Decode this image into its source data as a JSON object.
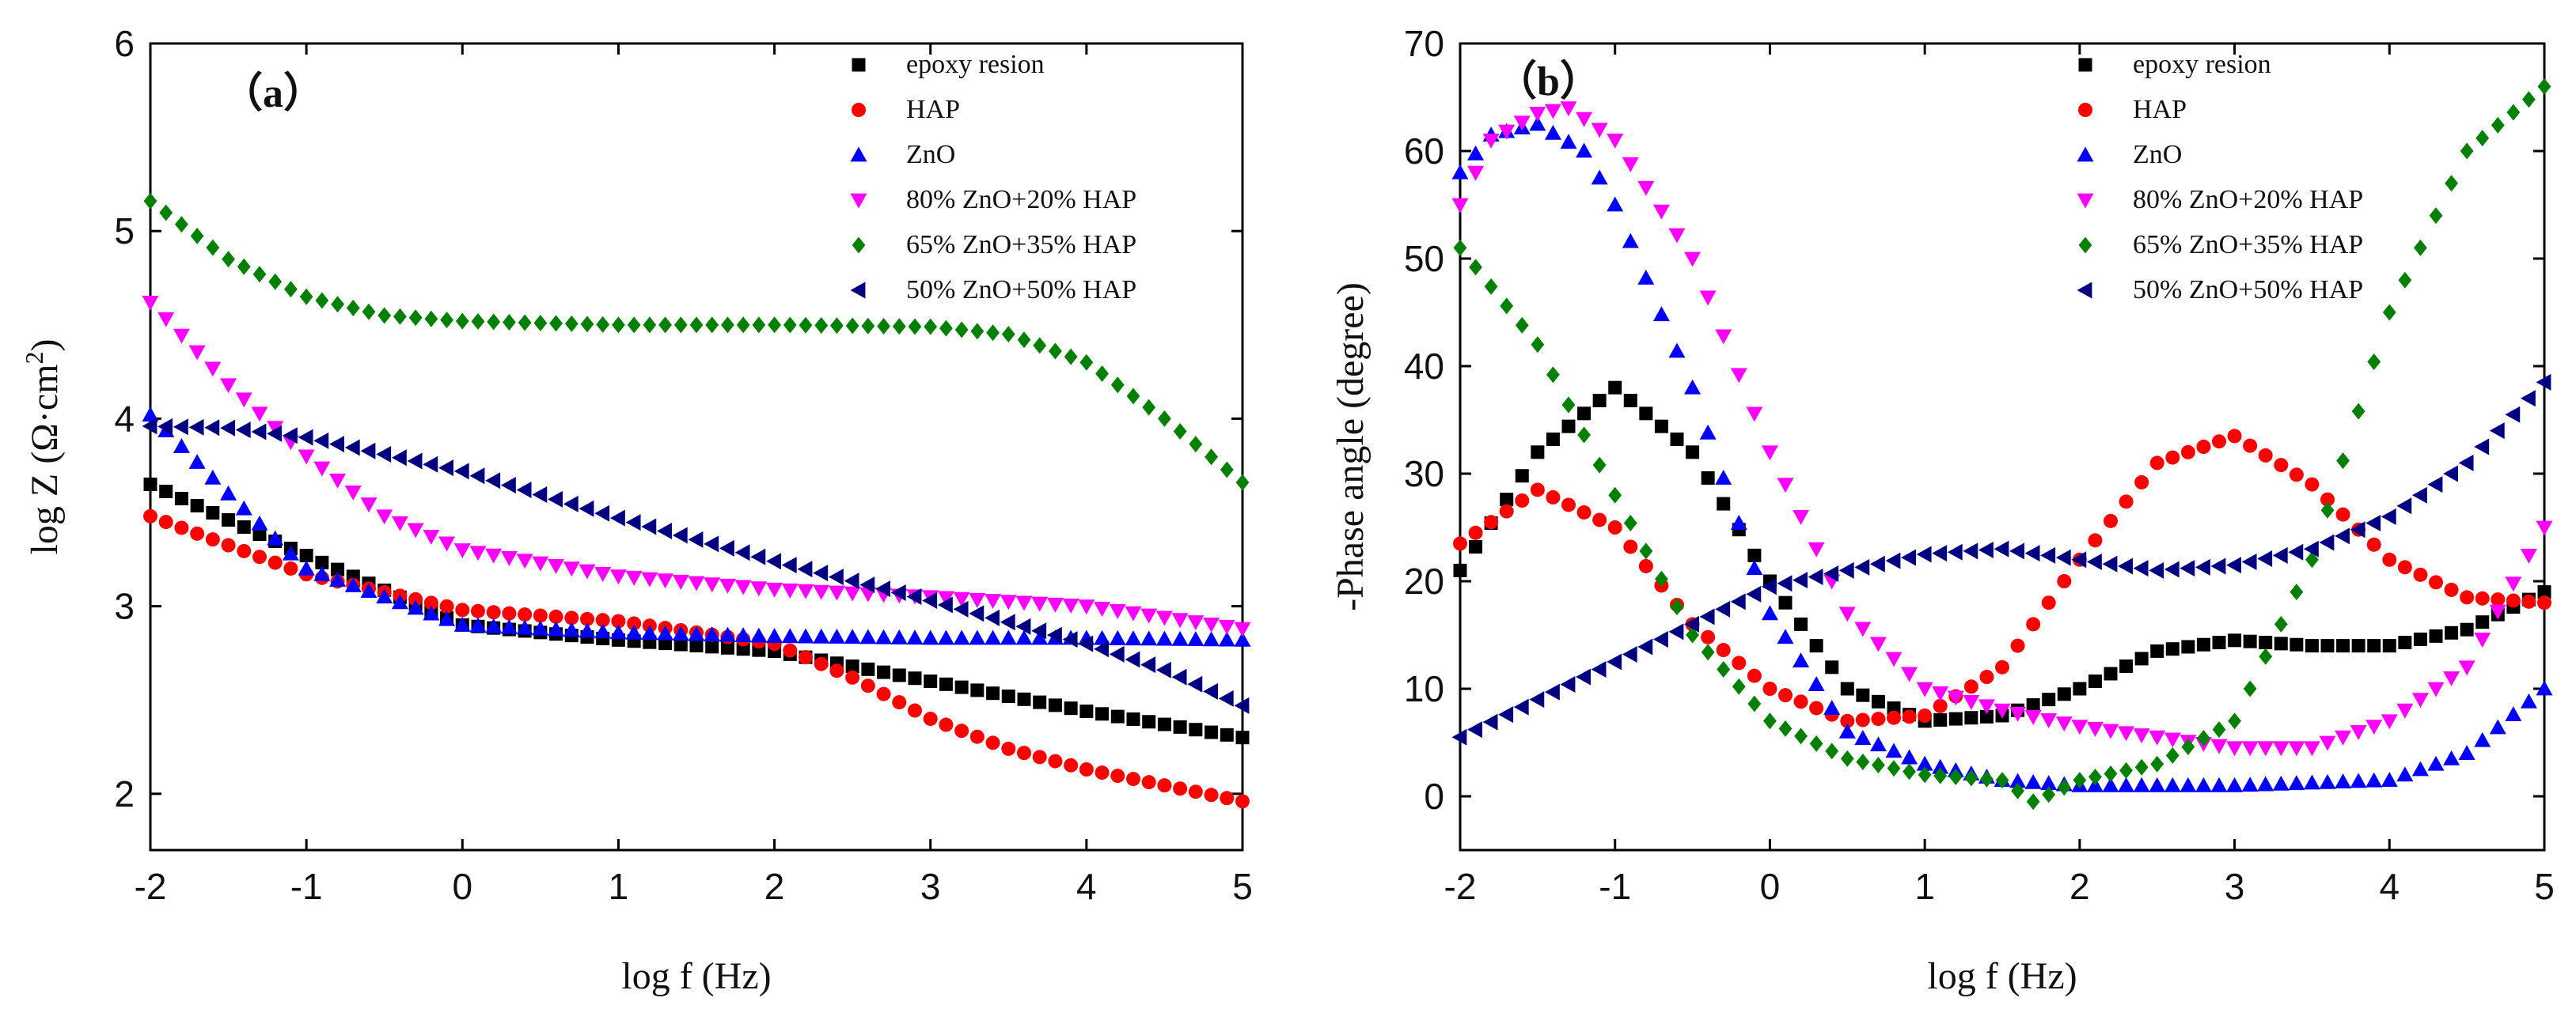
{
  "figure": "eis-bode-plots",
  "colors": {
    "epoxy": "#000000",
    "hap": "#ff0000",
    "zno": "#0000ff",
    "z80": "#ff00ff",
    "z65": "#008000",
    "z50": "#000080"
  },
  "chart_data": [
    {
      "type": "scatter",
      "panel_label": "（a）",
      "xlabel": "log f (Hz)",
      "ylabel": "log Z (Ω·cm²)",
      "ylabel_parts": {
        "main": "log Z (Ω·cm",
        "sup": "2",
        "tail": ")"
      },
      "xlim": [
        -2,
        5
      ],
      "ylim": [
        1.7,
        6
      ],
      "xticks": [
        -2,
        -1,
        0,
        1,
        2,
        3,
        4,
        5
      ],
      "xtick_labels": [
        "-2",
        "-1",
        "0",
        "1",
        "2",
        "3",
        "4",
        "5"
      ],
      "yticks": [
        2,
        3,
        4,
        5,
        6
      ],
      "ytick_labels": [
        "2",
        "3",
        "4",
        "5",
        "6"
      ],
      "legend_position": "top-right",
      "series": [
        {
          "name": "epoxy resion",
          "marker": "square",
          "color": "#000000",
          "x": [
            -2,
            -1,
            0,
            1,
            2,
            2.5,
            3,
            4,
            5
          ],
          "y": [
            3.65,
            3.27,
            2.9,
            2.82,
            2.76,
            2.68,
            2.6,
            2.44,
            2.3
          ]
        },
        {
          "name": "HAP",
          "marker": "circle",
          "color": "#ff0000",
          "x": [
            -2,
            -1,
            0,
            1,
            2,
            2.5,
            3,
            3.5,
            4,
            5
          ],
          "y": [
            3.48,
            3.17,
            2.98,
            2.92,
            2.8,
            2.62,
            2.4,
            2.24,
            2.13,
            1.96
          ]
        },
        {
          "name": "ZnO",
          "marker": "triangle-up",
          "color": "#0000ff",
          "x": [
            -2,
            -1.5,
            -1,
            0,
            1,
            2,
            3,
            4,
            5
          ],
          "y": [
            4.02,
            3.6,
            3.2,
            2.9,
            2.86,
            2.84,
            2.83,
            2.83,
            2.82
          ]
        },
        {
          "name": " 80% ZnO+20% HAP",
          "marker": "triangle-down",
          "color": "#ff00ff",
          "x": [
            -2,
            -1.5,
            -1,
            -0.5,
            0,
            1,
            2,
            3,
            4,
            5
          ],
          "y": [
            4.62,
            4.18,
            3.8,
            3.48,
            3.3,
            3.16,
            3.09,
            3.05,
            3.0,
            2.88
          ]
        },
        {
          "name": " 65% ZnO+35% HAP",
          "marker": "diamond",
          "color": "#008000",
          "x": [
            -2,
            -1.5,
            -1,
            -0.5,
            0,
            1,
            2,
            3,
            3.5,
            4,
            4.5,
            5
          ],
          "y": [
            5.16,
            4.85,
            4.65,
            4.55,
            4.52,
            4.5,
            4.5,
            4.49,
            4.45,
            4.3,
            4.0,
            3.66
          ]
        },
        {
          "name": " 50% ZnO+50% HAP",
          "marker": "triangle-left",
          "color": "#000080",
          "x": [
            -2,
            -1.5,
            -1,
            0,
            1,
            2,
            3,
            4,
            4.5,
            5
          ],
          "y": [
            3.96,
            3.95,
            3.9,
            3.72,
            3.47,
            3.24,
            3.03,
            2.8,
            2.66,
            2.47
          ]
        }
      ]
    },
    {
      "type": "scatter",
      "panel_label": "（b）",
      "xlabel": "log f (Hz)",
      "ylabel": "-Phase angle (degree)",
      "xlim": [
        -2,
        5
      ],
      "ylim": [
        -5,
        70
      ],
      "xticks": [
        -2,
        -1,
        0,
        1,
        2,
        3,
        4,
        5
      ],
      "xtick_labels": [
        "-2",
        "-1",
        "0",
        "1",
        "2",
        "3",
        "4",
        "5"
      ],
      "yticks": [
        0,
        10,
        20,
        30,
        40,
        50,
        60,
        70
      ],
      "ytick_labels": [
        "0",
        "10",
        "20",
        "30",
        "40",
        "50",
        "60",
        "70"
      ],
      "legend_position": "top-center",
      "series": [
        {
          "name": "epoxy resion",
          "marker": "square",
          "color": "#000000",
          "x": [
            -2,
            -1.5,
            -1,
            -0.5,
            0,
            0.5,
            1,
            1.5,
            2,
            2.5,
            3,
            3.5,
            4,
            4.5,
            5
          ],
          "y": [
            21,
            32,
            38,
            32,
            20,
            10,
            7,
            7.5,
            10,
            13.5,
            14.5,
            14,
            14,
            15.5,
            19
          ]
        },
        {
          "name": "HAP",
          "marker": "circle",
          "color": "#ff0000",
          "x": [
            -2,
            -1.5,
            -1,
            -0.5,
            0,
            0.5,
            1,
            1.5,
            2,
            2.5,
            3,
            3.5,
            4,
            4.5,
            5
          ],
          "y": [
            23.5,
            28.5,
            25,
            16,
            10,
            7,
            7.5,
            12,
            22,
            31,
            33.5,
            29,
            22,
            18.5,
            18
          ]
        },
        {
          "name": "ZnO",
          "marker": "triangle-up",
          "color": "#0000ff",
          "x": [
            -2,
            -1.8,
            -1.5,
            -1.2,
            -1,
            -0.5,
            0,
            0.5,
            1,
            1.5,
            2,
            3,
            4,
            4.5,
            5
          ],
          "y": [
            58,
            61.5,
            62.5,
            60,
            55,
            38,
            17,
            6,
            3,
            1.5,
            1,
            1,
            1.5,
            4,
            10
          ]
        },
        {
          "name": " 80% ZnO+20% HAP",
          "marker": "triangle-down",
          "color": "#ff00ff",
          "x": [
            -2,
            -1.8,
            -1.5,
            -1.3,
            -1,
            -0.5,
            0,
            0.5,
            1,
            1.5,
            2,
            2.5,
            3,
            3.5,
            4,
            4.5,
            5
          ],
          "y": [
            55,
            61,
            63.5,
            64,
            61,
            50,
            32,
            17,
            10,
            8,
            6.5,
            5.5,
            4.5,
            4.5,
            7,
            12,
            25
          ]
        },
        {
          "name": " 65% ZnO+35% HAP",
          "marker": "diamond",
          "color": "#008000",
          "x": [
            -2,
            -1.5,
            -1,
            -0.5,
            0,
            0.5,
            1,
            1.5,
            1.7,
            2,
            2.5,
            3,
            3.5,
            4,
            4.5,
            5
          ],
          "y": [
            51,
            42,
            28,
            15,
            7,
            3.5,
            2,
            1.5,
            -0.5,
            1.5,
            3,
            7,
            22,
            45,
            60,
            66
          ]
        },
        {
          "name": " 50% ZnO+50% HAP",
          "marker": "triangle-left",
          "color": "#000080",
          "x": [
            -2,
            -1.5,
            -1,
            -0.5,
            0,
            0.5,
            1,
            1.5,
            2,
            2.5,
            3,
            3.5,
            4,
            4.5,
            5
          ],
          "y": [
            5.5,
            9,
            12.5,
            16,
            19.5,
            21,
            22.5,
            23,
            22,
            21,
            21.5,
            23,
            26,
            31,
            38.5
          ]
        }
      ]
    }
  ]
}
